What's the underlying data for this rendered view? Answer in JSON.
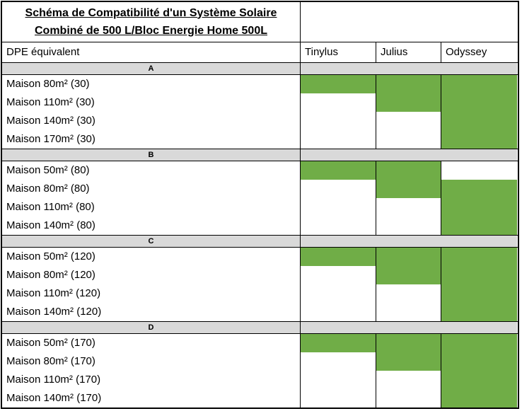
{
  "title": {
    "line1": "Schéma de Compatibilité d'un Système Solaire",
    "line2": "Combiné de 500 L/Bloc Energie Home 500L"
  },
  "header": {
    "row_label": "DPE équivalent",
    "columns": [
      "Tinylus",
      "Julius",
      "Odyssey"
    ]
  },
  "colors": {
    "compatible": "#70ad47",
    "band": "#d9d9d9",
    "border": "#000000",
    "background": "#ffffff"
  },
  "legend": {
    "compatible_meaning": "green cell = compatible"
  },
  "sections": [
    {
      "label": "A",
      "rows": [
        {
          "label": "Maison 80m² (30)",
          "compat": [
            true,
            true,
            true
          ]
        },
        {
          "label": "Maison 110m² (30)",
          "compat": [
            false,
            true,
            true
          ]
        },
        {
          "label": "Maison 140m² (30)",
          "compat": [
            false,
            false,
            true
          ]
        },
        {
          "label": "Maison 170m² (30)",
          "compat": [
            false,
            false,
            true
          ]
        }
      ]
    },
    {
      "label": "B",
      "rows": [
        {
          "label": "Maison 50m² (80)",
          "compat": [
            true,
            true,
            false
          ]
        },
        {
          "label": "Maison 80m² (80)",
          "compat": [
            false,
            true,
            true
          ]
        },
        {
          "label": "Maison 110m² (80)",
          "compat": [
            false,
            false,
            true
          ]
        },
        {
          "label": "Maison 140m² (80)",
          "compat": [
            false,
            false,
            true
          ]
        }
      ]
    },
    {
      "label": "C",
      "rows": [
        {
          "label": "Maison 50m² (120)",
          "compat": [
            true,
            true,
            true
          ]
        },
        {
          "label": "Maison 80m² (120)",
          "compat": [
            false,
            true,
            true
          ]
        },
        {
          "label": "Maison 110m² (120)",
          "compat": [
            false,
            false,
            true
          ]
        },
        {
          "label": "Maison 140m² (120)",
          "compat": [
            false,
            false,
            true
          ]
        }
      ]
    },
    {
      "label": "D",
      "rows": [
        {
          "label": "Maison 50m² (170)",
          "compat": [
            true,
            true,
            true
          ]
        },
        {
          "label": "Maison 80m² (170)",
          "compat": [
            false,
            true,
            true
          ]
        },
        {
          "label": "Maison 110m² (170)",
          "compat": [
            false,
            false,
            true
          ]
        },
        {
          "label": "Maison 140m² (170)",
          "compat": [
            false,
            false,
            true
          ]
        }
      ]
    }
  ]
}
